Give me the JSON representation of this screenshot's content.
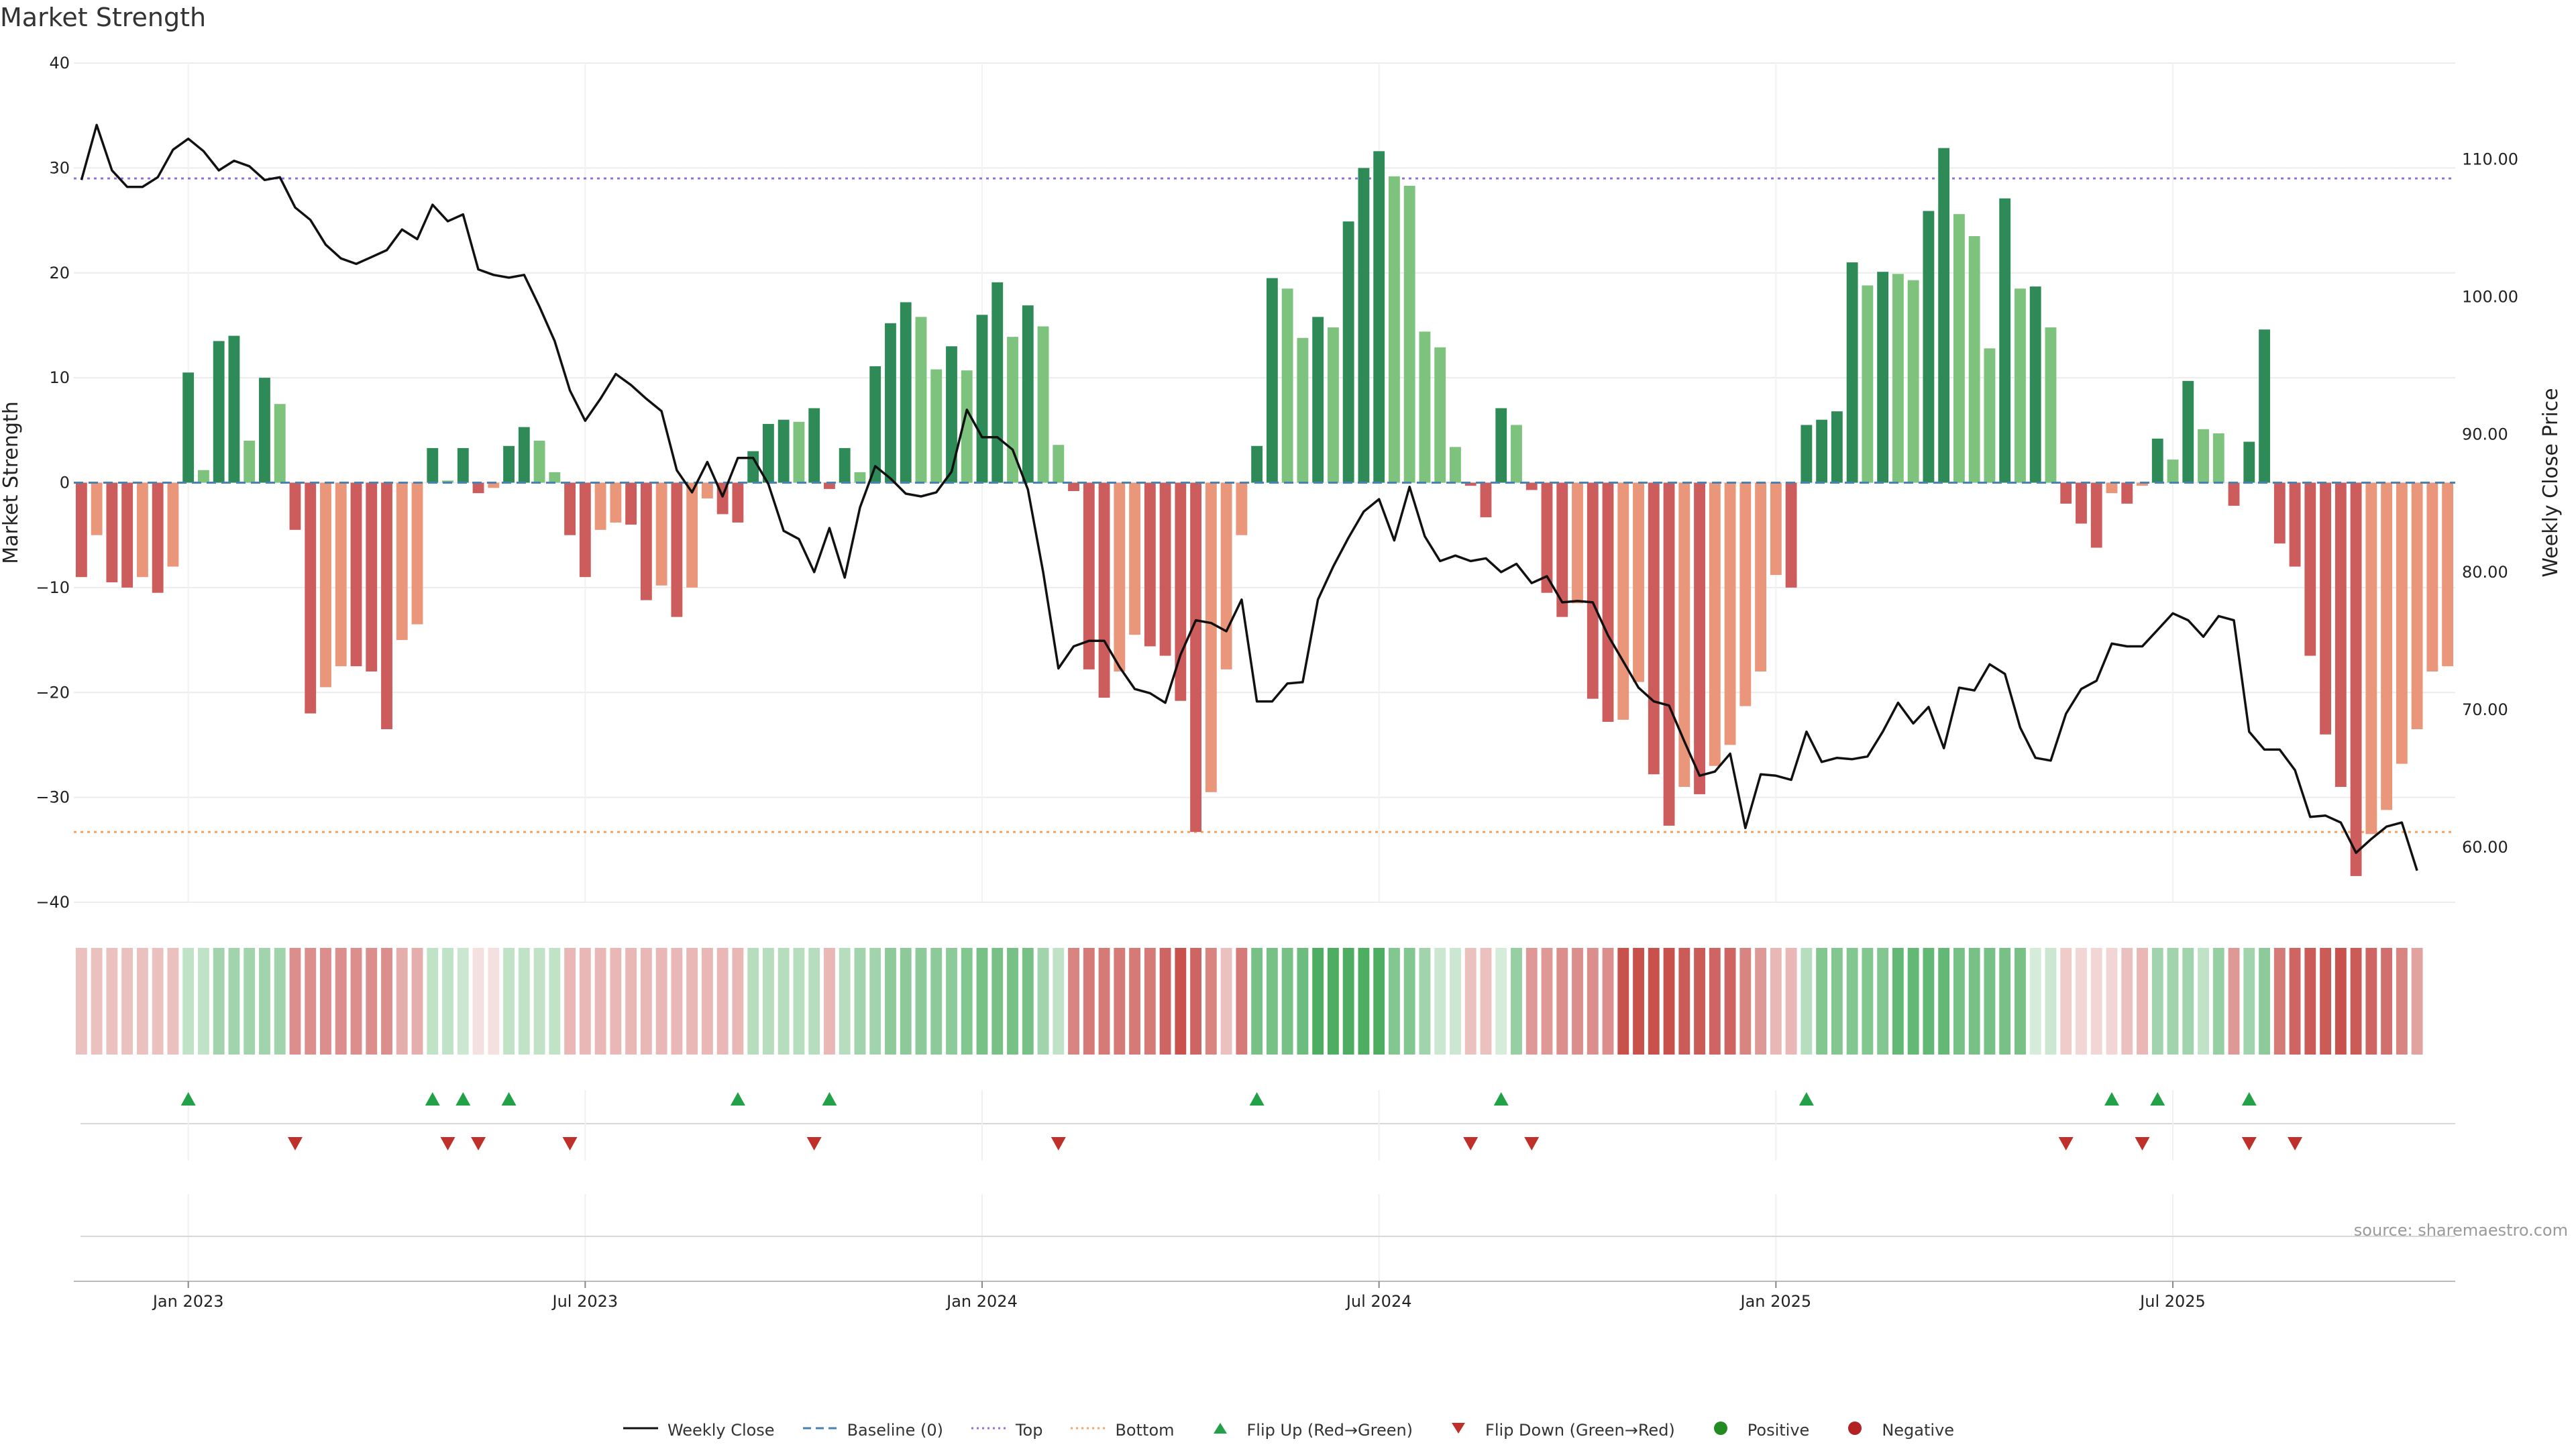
{
  "chart_data": {
    "type": "bar",
    "title": "Market Strength",
    "source": "source: sharemaestro.com",
    "ylabel": "Market Strength",
    "ylabel_right": "Weekly Close Price",
    "ylim": [
      -40,
      40
    ],
    "ylim_right": [
      56.0,
      117.0
    ],
    "yticks": [
      40,
      30,
      20,
      10,
      0,
      -10,
      -20,
      -30,
      -40
    ],
    "yticks_right": [
      "110.00",
      "100.00",
      "90.00",
      "80.00",
      "70.00",
      "60.00"
    ],
    "yticks_right_values": [
      110,
      100,
      90,
      80,
      70,
      60
    ],
    "x_labels": [
      "Jan 2023",
      "Jul 2023",
      "Jan 2024",
      "Jul 2024",
      "Jan 2025",
      "Jul 2025"
    ],
    "x_label_weeks": [
      7,
      33,
      59,
      85,
      111,
      137
    ],
    "top_threshold": 29,
    "bottom_threshold": -33.3,
    "strength": [
      -9,
      -5,
      -9.5,
      -10,
      -9,
      -10.5,
      -8,
      10.5,
      1.2,
      13.5,
      14,
      4,
      10,
      7.5,
      -4.5,
      -22,
      -19.5,
      -17.5,
      -17.5,
      -18,
      -23.5,
      -15,
      -13.5,
      3.3,
      0.2,
      3.3,
      -1,
      -0.5,
      3.5,
      5.3,
      4,
      1,
      -5,
      -9,
      -4.5,
      -3.8,
      -4,
      -11.2,
      -9.8,
      -12.8,
      -10,
      -1.5,
      -3,
      -3.8,
      3,
      5.6,
      6,
      5.8,
      7.1,
      -0.6,
      3.3,
      1,
      11.1,
      15.2,
      17.2,
      15.8,
      10.8,
      13,
      10.7,
      16,
      19.1,
      13.9,
      16.9,
      14.9,
      3.6,
      -0.8,
      -17.8,
      -20.5,
      -18,
      -14.5,
      -15.6,
      -16.5,
      -20.8,
      -33.3,
      -29.5,
      -17.8,
      -5,
      3.5,
      19.5,
      18.5,
      13.8,
      15.8,
      14.8,
      24.9,
      30,
      31.6,
      29.2,
      28.3,
      14.4,
      12.9,
      3.4,
      -0.3,
      -3.3,
      7.1,
      5.5,
      -0.7,
      -10.5,
      -12.8,
      -11.5,
      -20.6,
      -22.8,
      -22.6,
      -19,
      -27.8,
      -32.7,
      -29,
      -29.7,
      -27,
      -25,
      -21.3,
      -18,
      -8.8,
      -10,
      5.5,
      6,
      6.8,
      21,
      18.8,
      20.1,
      19.9,
      19.3,
      25.9,
      31.9,
      25.6,
      23.5,
      12.8,
      27.1,
      18.5,
      18.7,
      14.8,
      -2,
      -3.9,
      -6.2,
      -1,
      -2,
      -0.3,
      4.2,
      2.2,
      9.7,
      5.1,
      4.7,
      -2.2,
      3.9,
      14.6,
      -5.8,
      -8,
      -16.5,
      -24,
      -29,
      -37.5,
      -33.5,
      -31.2,
      -26.8,
      -23.5,
      -18,
      -17.5
    ],
    "close": [
      108.5,
      112.5,
      109.2,
      108,
      108,
      108.7,
      110.7,
      111.5,
      110.6,
      109.2,
      109.9,
      109.5,
      108.5,
      108.7,
      106.5,
      105.6,
      103.8,
      102.8,
      102.4,
      102.9,
      103.4,
      104.9,
      104.2,
      106.7,
      105.5,
      106,
      102,
      101.6,
      101.4,
      101.6,
      99.3,
      96.8,
      93.2,
      91,
      92.6,
      94.4,
      93.6,
      92.6,
      91.7,
      87.4,
      85.8,
      88,
      85.5,
      88.3,
      88.3,
      86.4,
      83,
      82.4,
      80,
      83.2,
      79.6,
      84.7,
      87.7,
      86.8,
      85.7,
      85.5,
      85.8,
      87.3,
      91.8,
      89.8,
      89.8,
      88.9,
      86,
      80,
      73,
      74.6,
      75,
      75,
      73.1,
      71.5,
      71.2,
      70.5,
      74,
      76.5,
      76.3,
      75.7,
      78,
      70.6,
      70.6,
      71.9,
      72,
      78,
      80.4,
      82.5,
      84.4,
      85.3,
      82.3,
      86.2,
      82.6,
      80.8,
      81.2,
      80.8,
      81,
      80,
      80.6,
      79.2,
      79.7,
      77.8,
      77.9,
      77.8,
      75.4,
      73.5,
      71.6,
      70.6,
      70.3,
      67.7,
      65.2,
      65.5,
      66.8,
      61.4,
      65.3,
      65.2,
      64.9,
      68.4,
      66.2,
      66.5,
      66.4,
      66.6,
      68.4,
      70.5,
      69,
      70.2,
      67.2,
      71.6,
      71.4,
      73.3,
      72.6,
      68.7,
      66.5,
      66.3,
      69.7,
      71.5,
      72.1,
      74.8,
      74.6,
      74.6,
      75.8,
      77,
      76.5,
      75.3,
      76.8,
      76.5,
      68.4,
      67.1,
      67.1,
      65.6,
      62.2,
      62.3,
      61.8,
      59.6,
      60.6,
      61.5,
      61.8,
      58.3
    ],
    "heat_intensity": [
      0.3,
      0.3,
      0.3,
      0.3,
      0.3,
      0.3,
      0.3,
      0.3,
      0.3,
      0.45,
      0.45,
      0.45,
      0.45,
      0.45,
      0.55,
      0.55,
      0.55,
      0.55,
      0.55,
      0.55,
      0.55,
      0.4,
      0.4,
      0.3,
      0.3,
      0.25,
      0.15,
      0.15,
      0.3,
      0.3,
      0.3,
      0.3,
      0.35,
      0.35,
      0.35,
      0.35,
      0.35,
      0.35,
      0.35,
      0.35,
      0.35,
      0.35,
      0.35,
      0.35,
      0.35,
      0.35,
      0.35,
      0.35,
      0.35,
      0.35,
      0.35,
      0.45,
      0.45,
      0.55,
      0.55,
      0.55,
      0.55,
      0.55,
      0.6,
      0.65,
      0.65,
      0.65,
      0.65,
      0.45,
      0.3,
      0.6,
      0.65,
      0.65,
      0.65,
      0.65,
      0.65,
      0.75,
      0.85,
      0.75,
      0.6,
      0.3,
      0.65,
      0.65,
      0.65,
      0.65,
      0.7,
      0.85,
      0.85,
      0.85,
      0.85,
      0.85,
      0.6,
      0.6,
      0.45,
      0.25,
      0.25,
      0.3,
      0.3,
      0.2,
      0.5,
      0.5,
      0.5,
      0.55,
      0.55,
      0.55,
      0.55,
      0.85,
      0.85,
      0.85,
      0.85,
      0.8,
      0.8,
      0.75,
      0.75,
      0.6,
      0.5,
      0.35,
      0.35,
      0.35,
      0.6,
      0.6,
      0.6,
      0.6,
      0.6,
      0.75,
      0.75,
      0.75,
      0.75,
      0.65,
      0.65,
      0.65,
      0.65,
      0.65,
      0.2,
      0.25,
      0.25,
      0.2,
      0.2,
      0.2,
      0.3,
      0.35,
      0.45,
      0.45,
      0.45,
      0.3,
      0.5,
      0.5,
      0.45,
      0.55,
      0.65,
      0.75,
      0.8,
      0.8,
      0.85,
      0.8,
      0.75,
      0.7,
      0.6,
      0.45
    ],
    "flips_up": [
      7,
      23,
      25,
      28,
      43,
      49,
      77,
      93,
      113,
      133,
      136,
      142
    ],
    "flips_down": [
      14,
      24,
      26,
      32,
      48,
      64,
      91,
      95,
      130,
      135,
      142,
      145
    ],
    "colors": {
      "green_strong": "#2e8b57",
      "green_light": "#7dc27d",
      "red_strong": "#cd5c5c",
      "red_light": "#e9967a",
      "line": "#111111",
      "top": "#9370db",
      "bottom": "#f4a460",
      "baseline": "#4682b4",
      "flip_up": "#22a148",
      "flip_down": "#c0302b",
      "positive": "#228b22",
      "negative": "#b22222"
    },
    "legend": [
      {
        "label": "Weekly Close",
        "kind": "line"
      },
      {
        "label": "Baseline (0)",
        "kind": "dash-baseline"
      },
      {
        "label": "Top",
        "kind": "dot-top"
      },
      {
        "label": "Bottom",
        "kind": "dot-bottom"
      },
      {
        "label": "Flip Up (Red→Green)",
        "kind": "tri-up"
      },
      {
        "label": "Flip Down (Green→Red)",
        "kind": "tri-down"
      },
      {
        "label": "Positive",
        "kind": "dot-pos"
      },
      {
        "label": "Negative",
        "kind": "dot-neg"
      }
    ]
  }
}
